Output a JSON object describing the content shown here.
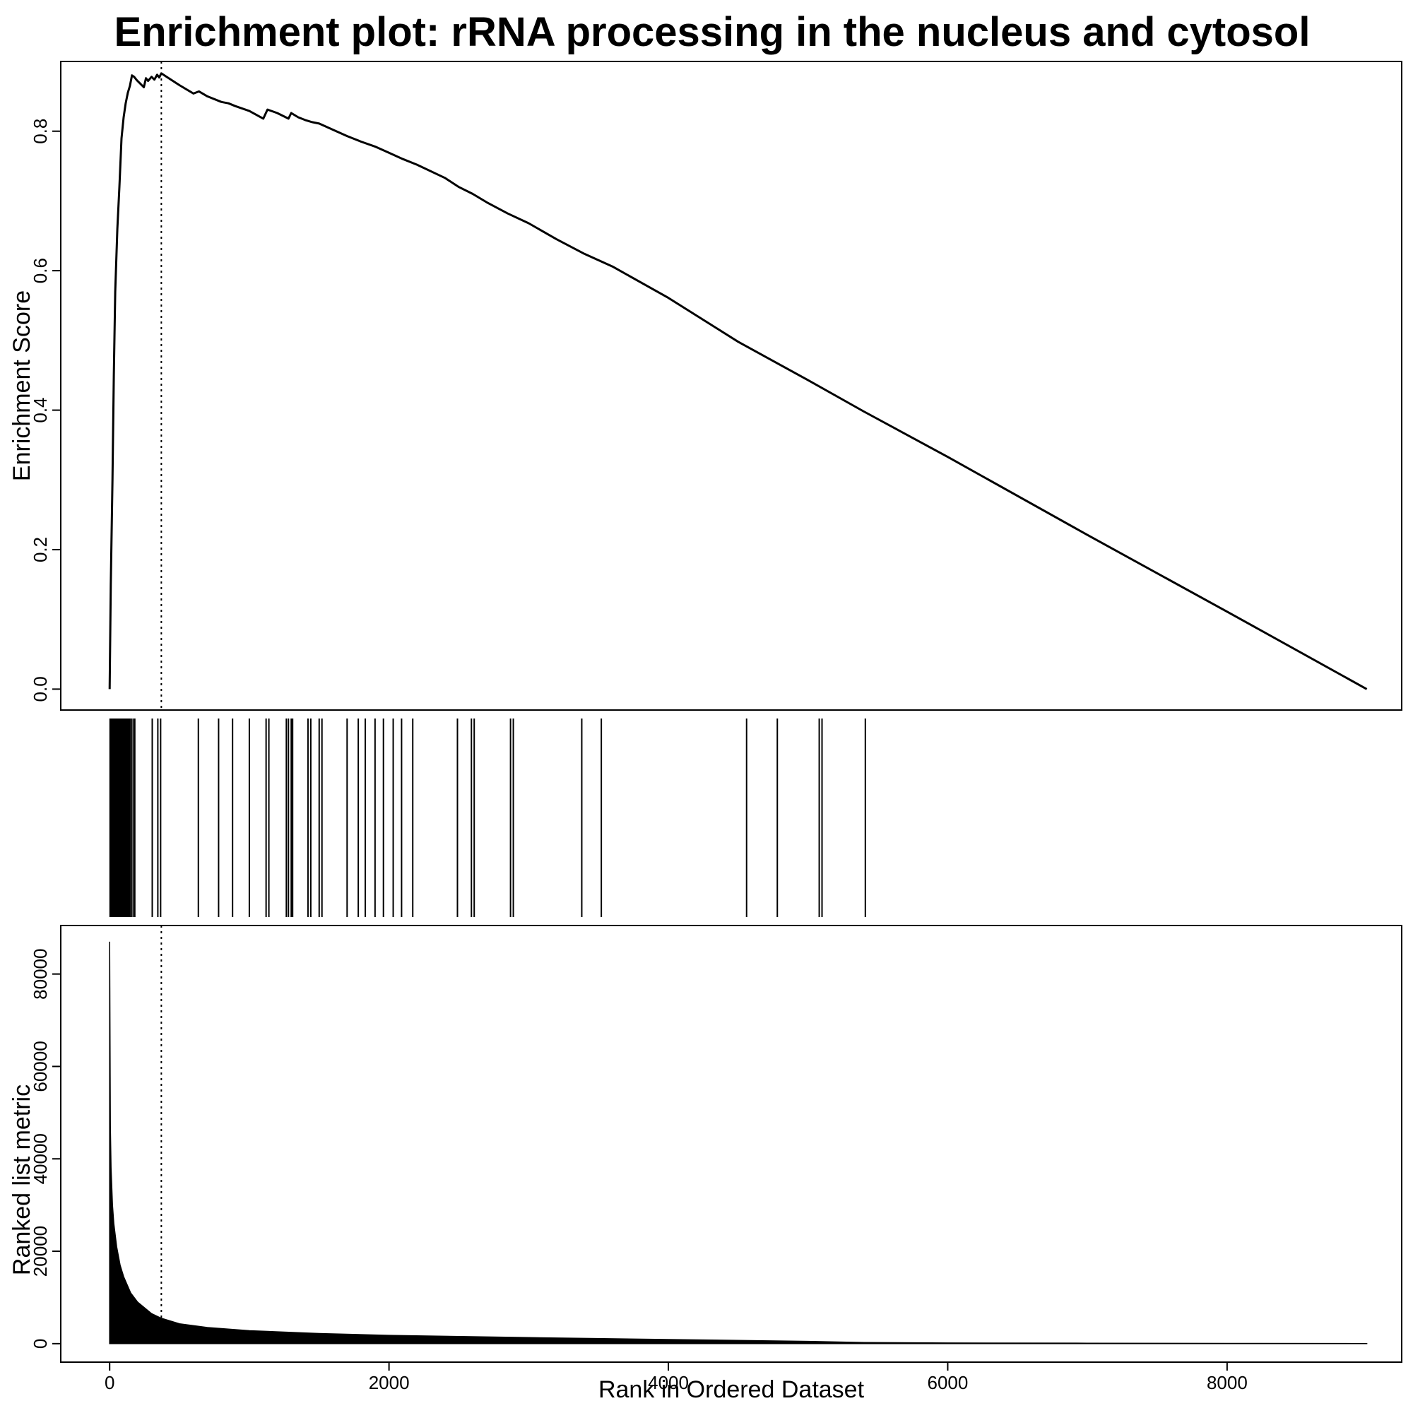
{
  "chart_data": {
    "type": "line",
    "title": "Enrichment plot: rRNA processing in the nucleus and cytosol",
    "peak_rank": 370,
    "panels": {
      "enrichment": {
        "ylabel": "Enrichment Score",
        "ylim": [
          -0.03,
          0.9
        ],
        "yticks": [
          0.0,
          0.2,
          0.4,
          0.6,
          0.8
        ],
        "ytick_labels": [
          "0.0",
          "0.2",
          "0.4",
          "0.6",
          "0.8"
        ],
        "series": {
          "name": "",
          "x": [
            0,
            8,
            20,
            30,
            40,
            55,
            70,
            85,
            100,
            115,
            130,
            145,
            160,
            175,
            195,
            220,
            245,
            260,
            275,
            300,
            320,
            340,
            355,
            370,
            400,
            500,
            600,
            640,
            700,
            800,
            850,
            900,
            1000,
            1100,
            1130,
            1200,
            1280,
            1300,
            1350,
            1400,
            1450,
            1500,
            1600,
            1700,
            1800,
            1900,
            2000,
            2100,
            2200,
            2400,
            2500,
            2600,
            2700,
            2850,
            3000,
            3200,
            3400,
            3600,
            4000,
            4500,
            5000,
            5400,
            6000,
            7000,
            8000,
            9000
          ],
          "y": [
            0.0,
            0.15,
            0.3,
            0.45,
            0.57,
            0.66,
            0.72,
            0.79,
            0.82,
            0.84,
            0.855,
            0.865,
            0.88,
            0.878,
            0.873,
            0.868,
            0.863,
            0.876,
            0.872,
            0.878,
            0.874,
            0.881,
            0.877,
            0.883,
            0.879,
            0.866,
            0.854,
            0.857,
            0.85,
            0.842,
            0.84,
            0.836,
            0.829,
            0.818,
            0.831,
            0.826,
            0.818,
            0.826,
            0.82,
            0.816,
            0.813,
            0.811,
            0.802,
            0.793,
            0.785,
            0.778,
            0.769,
            0.76,
            0.752,
            0.733,
            0.72,
            0.71,
            0.698,
            0.682,
            0.668,
            0.645,
            0.624,
            0.606,
            0.561,
            0.498,
            0.443,
            0.398,
            0.333,
            0.221,
            0.111,
            0.0
          ]
        }
      },
      "hits": {
        "positions": [
          3,
          10,
          18,
          25,
          32,
          40,
          48,
          56,
          64,
          72,
          80,
          88,
          96,
          104,
          112,
          120,
          128,
          136,
          145,
          155,
          168,
          180,
          305,
          345,
          365,
          635,
          780,
          880,
          1000,
          1120,
          1140,
          1265,
          1280,
          1300,
          1310,
          1420,
          1440,
          1500,
          1520,
          1700,
          1780,
          1830,
          1900,
          1960,
          2030,
          2090,
          2170,
          2490,
          2590,
          2610,
          2870,
          2890,
          3380,
          3520,
          4560,
          4780,
          5080,
          5100,
          5410
        ]
      },
      "metric": {
        "ylabel": "Ranked list metric",
        "xlabel": "Rank in Ordered Dataset",
        "ylim": [
          -4000,
          90500
        ],
        "yticks": [
          0,
          20000,
          40000,
          60000,
          80000
        ],
        "ytick_labels": [
          "0",
          "20000",
          "40000",
          "60000",
          "80000"
        ],
        "xlim": [
          -350,
          9250
        ],
        "xticks": [
          0,
          2000,
          4000,
          6000,
          8000
        ],
        "xtick_labels": [
          "0",
          "2000",
          "4000",
          "6000",
          "8000"
        ],
        "series": {
          "name": "",
          "x": [
            0,
            5,
            10,
            20,
            30,
            50,
            75,
            100,
            150,
            200,
            300,
            370,
            500,
            700,
            1000,
            1500,
            2000,
            3000,
            4000,
            5000,
            5400,
            6000,
            7000,
            8000,
            9000
          ],
          "y": [
            87000,
            47000,
            38000,
            30000,
            26000,
            21000,
            17000,
            14500,
            11000,
            9000,
            6500,
            5500,
            4300,
            3500,
            2800,
            2200,
            1800,
            1300,
            900,
            500,
            250,
            150,
            100,
            50,
            20
          ]
        }
      }
    }
  }
}
